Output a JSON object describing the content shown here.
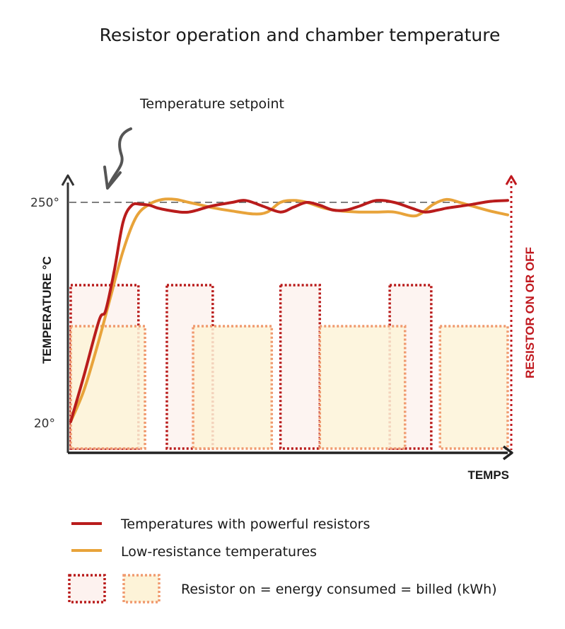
{
  "chart_data": {
    "type": "line",
    "title": "Resistor operation and chamber temperature",
    "xlabel": "TEMPS",
    "ylabel": "TEMPERATURE °C",
    "y2label": "RESISTOR ON OR OFF",
    "y_ticks": [
      "250°",
      "20°"
    ],
    "y_tick_values": [
      250,
      20
    ],
    "setpoint": {
      "value": 250,
      "label": "Temperature setpoint"
    },
    "xlim": [
      0,
      100
    ],
    "ylim": [
      0,
      270
    ],
    "series": [
      {
        "name": "Temperatures with powerful resistors",
        "color": "#b91c1c",
        "x": [
          0,
          3,
          6.5,
          8,
          10,
          12,
          14,
          16,
          18,
          20,
          22,
          25,
          27,
          29,
          32,
          37,
          40,
          44,
          48,
          51,
          54,
          57,
          60,
          63,
          66,
          70,
          74,
          78,
          81,
          84,
          86,
          89,
          92,
          96,
          100
        ],
        "y": [
          23,
          70,
          128,
          138,
          180,
          230,
          247,
          248,
          247,
          244,
          242,
          240,
          240,
          242,
          246,
          250,
          252,
          246,
          240,
          245,
          250,
          247,
          242,
          242,
          246,
          252,
          250,
          244,
          240,
          242,
          244,
          246,
          248,
          251,
          252
        ]
      },
      {
        "name": "Low-resistance temperatures",
        "color": "#e8a33a",
        "x": [
          0,
          3,
          6,
          9,
          12,
          15,
          18,
          21,
          24,
          27,
          30,
          33,
          37,
          42,
          45,
          48,
          51,
          54,
          58,
          62,
          66,
          70,
          74,
          78,
          80,
          83,
          86,
          89,
          92,
          96,
          100
        ],
        "y": [
          23,
          55,
          100,
          150,
          200,
          235,
          248,
          253,
          253,
          250,
          247,
          244,
          241,
          238,
          240,
          250,
          252,
          250,
          244,
          241,
          240,
          240,
          240,
          236,
          238,
          248,
          253,
          250,
          246,
          241,
          237
        ]
      }
    ],
    "resistor_on_powerful": [
      [
        0,
        15.5
      ],
      [
        22,
        32.5
      ],
      [
        48,
        57
      ],
      [
        73,
        82.5
      ]
    ],
    "resistor_on_low": [
      [
        0,
        17
      ],
      [
        28,
        46
      ],
      [
        57,
        76.5
      ],
      [
        84.5,
        100
      ]
    ],
    "legend": {
      "placement": "bottom",
      "area_label": "Resistor on = energy consumed = billed (kWh)"
    },
    "colors": {
      "axis": "#333333",
      "powerful": "#b91c1c",
      "low": "#e8a33a",
      "box_powerful_fill": "#fdf2ef",
      "box_low_fill": "#fdf3d8",
      "box_low_stroke": "#f09a6f",
      "setpoint_line": "#555555",
      "resistor_axis": "#c0181e"
    }
  }
}
